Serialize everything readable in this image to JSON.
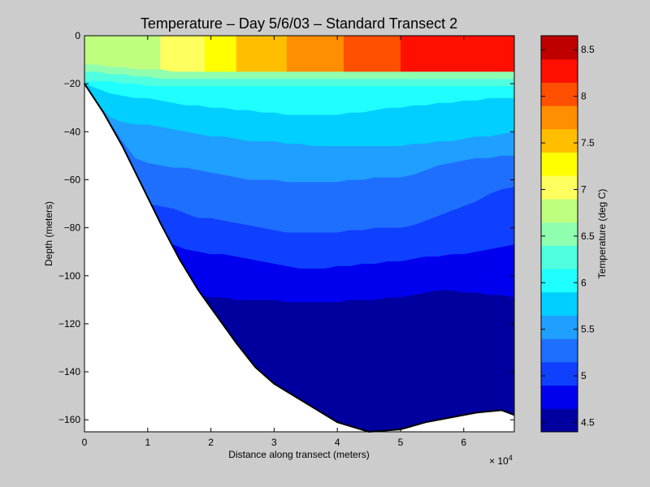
{
  "chart_data": {
    "type": "contour",
    "title": "Temperature – Day 5/6/03 – Standard Transect 2",
    "xlabel": "Distance along transect (meters)",
    "ylabel": "Depth (meters)",
    "x_multiplier_label": "× 10",
    "x_multiplier_exponent": "4",
    "xlim": [
      0,
      68000
    ],
    "ylim": [
      -165,
      0
    ],
    "x_ticks": [
      {
        "value": 0,
        "label": "0"
      },
      {
        "value": 10000,
        "label": "1"
      },
      {
        "value": 20000,
        "label": "2"
      },
      {
        "value": 30000,
        "label": "3"
      },
      {
        "value": 40000,
        "label": "4"
      },
      {
        "value": 50000,
        "label": "5"
      },
      {
        "value": 60000,
        "label": "6"
      }
    ],
    "y_ticks": [
      {
        "value": 0,
        "label": "0"
      },
      {
        "value": -20,
        "label": "−20"
      },
      {
        "value": -40,
        "label": "−40"
      },
      {
        "value": -60,
        "label": "−60"
      },
      {
        "value": -80,
        "label": "−80"
      },
      {
        "value": -100,
        "label": "−100"
      },
      {
        "value": -120,
        "label": "−120"
      },
      {
        "value": -140,
        "label": "−140"
      },
      {
        "value": -160,
        "label": "−160"
      }
    ],
    "grid": false,
    "colorbar": {
      "label": "Temperature (deg C)",
      "range": [
        4.4,
        8.65
      ],
      "ticks": [
        {
          "value": 4.5,
          "label": "4.5"
        },
        {
          "value": 5,
          "label": "5"
        },
        {
          "value": 5.5,
          "label": "5.5"
        },
        {
          "value": 6,
          "label": "6"
        },
        {
          "value": 6.5,
          "label": "6.5"
        },
        {
          "value": 7,
          "label": "7"
        },
        {
          "value": 7.5,
          "label": "7.5"
        },
        {
          "value": 8,
          "label": "8"
        },
        {
          "value": 8.5,
          "label": "8.5"
        }
      ],
      "levels": [
        4.4,
        4.65,
        4.9,
        5.15,
        5.4,
        5.65,
        5.9,
        6.15,
        6.4,
        6.65,
        6.9,
        7.15,
        7.4,
        7.65,
        7.9,
        8.15,
        8.4,
        8.65
      ],
      "colors": [
        "#00009f",
        "#0000ef",
        "#0f3fff",
        "#1f6fff",
        "#1f9fff",
        "#00cfff",
        "#1fffff",
        "#4fffdf",
        "#8fffaf",
        "#bfff7f",
        "#ffff5f",
        "#ffff00",
        "#ffbf00",
        "#ff8f00",
        "#ff4f00",
        "#ff0f00",
        "#bf0000"
      ]
    },
    "bottom_profile": {
      "x": [
        0,
        3000,
        6000,
        9000,
        12000,
        15000,
        18000,
        21000,
        24000,
        27000,
        30000,
        35000,
        40000,
        45000,
        50000,
        54000,
        58000,
        62000,
        66000,
        68000
      ],
      "depth": [
        -20,
        -32,
        -46,
        -62,
        -78,
        -93,
        -106,
        -117,
        -128,
        -138,
        -145,
        -153,
        -161,
        -165,
        -164,
        -161,
        -159,
        -157,
        -156,
        -158
      ]
    },
    "isotherm_depths": {
      "x": [
        0,
        2000,
        4000,
        6000,
        8000,
        10000,
        12000,
        14000,
        16000,
        18000,
        20000,
        22000,
        24000,
        26000,
        28000,
        30000,
        32000,
        34000,
        36000,
        38000,
        40000,
        42000,
        44000,
        46000,
        48000,
        50000,
        52000,
        54000,
        56000,
        58000,
        60000,
        62000,
        64000,
        66000,
        68000
      ],
      "levels": [
        {
          "level": 8.4,
          "depth": [
            2,
            2,
            2,
            2,
            2,
            2,
            2,
            2,
            2,
            2,
            2,
            2,
            2,
            2,
            2,
            2,
            2,
            2,
            2,
            2,
            2,
            2,
            2,
            2,
            2,
            2,
            2,
            2,
            2,
            2,
            2,
            2,
            2,
            2,
            2
          ]
        },
        {
          "level": 8.15,
          "depth": [
            2,
            2,
            2,
            2,
            2,
            2,
            2,
            2,
            2,
            2,
            2,
            2,
            2,
            2,
            2,
            2,
            2,
            2,
            2,
            2,
            2,
            2,
            2,
            2,
            2,
            2,
            2,
            2,
            2,
            2,
            2,
            2,
            2,
            2,
            2
          ]
        },
        {
          "level": 7.9,
          "depth": [
            2,
            2,
            2,
            2,
            2,
            2,
            2,
            2,
            2,
            2,
            2,
            2,
            2,
            2,
            2,
            2,
            2,
            2,
            2,
            2,
            2,
            2,
            2,
            2,
            2,
            2,
            2,
            2,
            2,
            2,
            2,
            2,
            2,
            2,
            2
          ]
        },
        {
          "level": 7.65,
          "depth": [
            2,
            2,
            2,
            2,
            2,
            2,
            2,
            2,
            2,
            2,
            2,
            2,
            2,
            2,
            2,
            2,
            2,
            2,
            2,
            2,
            2,
            2,
            2,
            2,
            2,
            2,
            2,
            2,
            2,
            2,
            2,
            2,
            2,
            2,
            2
          ]
        },
        {
          "level": 7.4,
          "depth": [
            2,
            2,
            2,
            2,
            2,
            2,
            2,
            2,
            2,
            2,
            2,
            2,
            2,
            2,
            2,
            2,
            2,
            2,
            2,
            2,
            2,
            2,
            2,
            2,
            2,
            2,
            2,
            2,
            2,
            2,
            2,
            2,
            2,
            2,
            2
          ]
        },
        {
          "level": 7.15,
          "depth": [
            2,
            2,
            2,
            2,
            2,
            2,
            2,
            2,
            2,
            2,
            2,
            2,
            2,
            2,
            2,
            2,
            2,
            2,
            2,
            2,
            2,
            2,
            2,
            2,
            2,
            2,
            2,
            2,
            2,
            2,
            2,
            2,
            2,
            2,
            2
          ]
        },
        {
          "level": 6.9,
          "depth": [
            2,
            2,
            2,
            2,
            2,
            2,
            2,
            2,
            2,
            2,
            2,
            2,
            2,
            2,
            2,
            2,
            2,
            2,
            2,
            2,
            2,
            2,
            2,
            2,
            2,
            2,
            2,
            2,
            2,
            2,
            2,
            2,
            2,
            2,
            2
          ]
        },
        {
          "level": 6.65,
          "depth": [
            -12,
            -12,
            -13,
            -13,
            -14,
            -14,
            -14,
            -15,
            -15,
            -15,
            -15,
            -15,
            -15,
            -15,
            -15,
            -15,
            -15,
            -15,
            -15,
            -15,
            -15,
            -15,
            -15,
            -15,
            -15,
            -15,
            -15,
            -15,
            -15,
            -15,
            -15,
            -15,
            -15,
            -15,
            -15
          ]
        },
        {
          "level": 6.4,
          "depth": [
            -15,
            -15,
            -16,
            -16,
            -17,
            -17,
            -18,
            -18,
            -18,
            -18,
            -18,
            -18,
            -18,
            -18,
            -18,
            -18,
            -18,
            -18,
            -18,
            -18,
            -18,
            -18,
            -18,
            -18,
            -18,
            -18,
            -18,
            -18,
            -18,
            -18,
            -18,
            -18,
            -18,
            -18,
            -18
          ]
        },
        {
          "level": 6.15,
          "depth": [
            -19,
            -19,
            -19,
            -20,
            -20,
            -21,
            -21,
            -21,
            -21,
            -21,
            -21,
            -21,
            -21,
            -21,
            -21,
            -21,
            -21,
            -21,
            -21,
            -21,
            -21,
            -21,
            -21,
            -21,
            -21,
            -21,
            -21,
            -21,
            -21,
            -21,
            -21,
            -21,
            -21,
            -21,
            -21
          ]
        },
        {
          "level": 5.9,
          "depth": [
            -20,
            -22,
            -24,
            -25,
            -26,
            -26,
            -27,
            -28,
            -29,
            -29,
            -30,
            -30,
            -31,
            -31,
            -32,
            -32,
            -33,
            -33,
            -33,
            -33,
            -33,
            -32,
            -32,
            -31,
            -30,
            -30,
            -29,
            -29,
            -28,
            -28,
            -27,
            -27,
            -26,
            -26,
            -26
          ]
        },
        {
          "level": 5.65,
          "depth": [
            -22,
            -28,
            -34,
            -36,
            -37,
            -37,
            -38,
            -39,
            -40,
            -41,
            -42,
            -42,
            -43,
            -44,
            -44,
            -44,
            -45,
            -45,
            -46,
            -46,
            -46,
            -46,
            -46,
            -46,
            -46,
            -46,
            -45,
            -45,
            -44,
            -44,
            -43,
            -42,
            -42,
            -41,
            -40
          ]
        },
        {
          "level": 5.4,
          "depth": [
            -24,
            -30,
            -36,
            -44,
            -51,
            -53,
            -54,
            -55,
            -55,
            -56,
            -57,
            -58,
            -59,
            -60,
            -60,
            -60,
            -61,
            -61,
            -61,
            -61,
            -61,
            -60,
            -60,
            -59,
            -59,
            -59,
            -58,
            -56,
            -54,
            -53,
            -52,
            -51,
            -51,
            -50,
            -50
          ]
        },
        {
          "level": 5.15,
          "depth": [
            -25,
            -32,
            -40,
            -50,
            -60,
            -70,
            -71,
            -72,
            -74,
            -76,
            -76,
            -77,
            -78,
            -79,
            -80,
            -81,
            -82,
            -82,
            -82,
            -82,
            -82,
            -81,
            -81,
            -80,
            -80,
            -80,
            -79,
            -77,
            -75,
            -73,
            -71,
            -69,
            -66,
            -64,
            -63
          ]
        },
        {
          "level": 4.9,
          "depth": [
            -27,
            -34,
            -42,
            -52,
            -62,
            -73,
            -84,
            -87,
            -89,
            -90,
            -91,
            -91,
            -92,
            -93,
            -94,
            -95,
            -96,
            -97,
            -97,
            -97,
            -96,
            -96,
            -95,
            -95,
            -94,
            -94,
            -93,
            -92,
            -92,
            -91,
            -91,
            -90,
            -89,
            -88,
            -87
          ]
        },
        {
          "level": 4.65,
          "depth": [
            -29,
            -36,
            -44,
            -54,
            -64,
            -75,
            -86,
            -97,
            -105,
            -108,
            -109,
            -109,
            -110,
            -110,
            -110,
            -110,
            -111,
            -111,
            -111,
            -111,
            -111,
            -110,
            -110,
            -110,
            -109,
            -109,
            -108,
            -107,
            -106,
            -106,
            -107,
            -107,
            -108,
            -108,
            -109
          ]
        }
      ]
    }
  }
}
